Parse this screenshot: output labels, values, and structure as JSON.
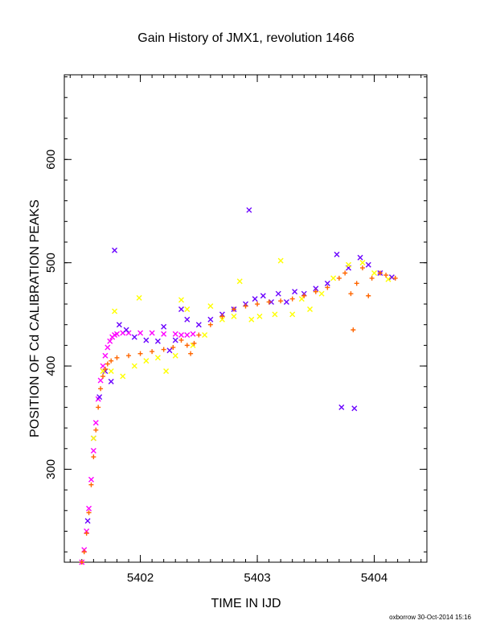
{
  "chart_data": {
    "type": "scatter",
    "title": "Gain History of JMX1, revolution 1466",
    "xlabel": "TIME IN IJD",
    "ylabel": "POSITION OF Cd CALIBRATION PEAKS",
    "xlim": [
      5401.35,
      5404.45
    ],
    "ylim": [
      210,
      682
    ],
    "x_ticks": [
      "5402",
      "5403",
      "5404"
    ],
    "x_tick_values": [
      5402,
      5403,
      5404
    ],
    "y_ticks": [
      "300",
      "400",
      "500",
      "600"
    ],
    "y_tick_values": [
      300,
      400,
      500,
      600
    ],
    "x_minor_step": 0.1,
    "y_minor_step": 20,
    "grid": false,
    "legend": "none",
    "credit": "oxborrow 30-Oct-2014 15:16",
    "series": [
      {
        "color": "#ff00ff",
        "marker": "x",
        "points": [
          [
            5401.5,
            210
          ],
          [
            5401.52,
            222
          ],
          [
            5401.54,
            240
          ],
          [
            5401.56,
            262
          ],
          [
            5401.58,
            290
          ],
          [
            5401.6,
            318
          ],
          [
            5401.62,
            345
          ],
          [
            5401.64,
            368
          ],
          [
            5401.66,
            386
          ],
          [
            5401.68,
            400
          ],
          [
            5401.7,
            410
          ],
          [
            5401.72,
            418
          ],
          [
            5401.74,
            424
          ],
          [
            5401.76,
            428
          ],
          [
            5401.78,
            430
          ],
          [
            5401.8,
            431
          ],
          [
            5401.85,
            432
          ],
          [
            5401.9,
            432
          ],
          [
            5402.0,
            432
          ],
          [
            5402.1,
            432
          ],
          [
            5402.2,
            431
          ],
          [
            5402.3,
            431
          ],
          [
            5402.35,
            430
          ],
          [
            5402.4,
            430
          ],
          [
            5402.45,
            431
          ]
        ]
      },
      {
        "color": "#6a00ff",
        "marker": "x",
        "points": [
          [
            5401.55,
            250
          ],
          [
            5401.6,
            330
          ],
          [
            5401.65,
            370
          ],
          [
            5401.7,
            395
          ],
          [
            5401.75,
            385
          ],
          [
            5401.78,
            512
          ],
          [
            5401.82,
            440
          ],
          [
            5401.88,
            435
          ],
          [
            5401.95,
            428
          ],
          [
            5402.05,
            425
          ],
          [
            5402.15,
            424
          ],
          [
            5402.2,
            438
          ],
          [
            5402.25,
            415
          ],
          [
            5402.3,
            425
          ],
          [
            5402.35,
            455
          ],
          [
            5402.4,
            445
          ],
          [
            5402.5,
            440
          ],
          [
            5402.6,
            445
          ],
          [
            5402.7,
            450
          ],
          [
            5402.8,
            455
          ],
          [
            5402.9,
            460
          ],
          [
            5402.93,
            551
          ],
          [
            5402.98,
            465
          ],
          [
            5403.05,
            468
          ],
          [
            5403.12,
            462
          ],
          [
            5403.18,
            470
          ],
          [
            5403.25,
            462
          ],
          [
            5403.32,
            472
          ],
          [
            5403.4,
            470
          ],
          [
            5403.5,
            475
          ],
          [
            5403.6,
            480
          ],
          [
            5403.68,
            508
          ],
          [
            5403.72,
            360
          ],
          [
            5403.78,
            495
          ],
          [
            5403.83,
            359
          ],
          [
            5403.88,
            505
          ],
          [
            5403.95,
            498
          ],
          [
            5404.05,
            490
          ],
          [
            5404.15,
            486
          ]
        ]
      },
      {
        "color": "#ffff00",
        "marker": "x",
        "points": [
          [
            5401.6,
            330
          ],
          [
            5401.68,
            395
          ],
          [
            5401.75,
            395
          ],
          [
            5401.78,
            453
          ],
          [
            5401.85,
            390
          ],
          [
            5401.95,
            400
          ],
          [
            5401.99,
            466
          ],
          [
            5402.05,
            405
          ],
          [
            5402.15,
            408
          ],
          [
            5402.22,
            395
          ],
          [
            5402.3,
            410
          ],
          [
            5402.35,
            464
          ],
          [
            5402.4,
            455
          ],
          [
            5402.45,
            420
          ],
          [
            5402.55,
            430
          ],
          [
            5402.6,
            458
          ],
          [
            5402.7,
            445
          ],
          [
            5402.8,
            448
          ],
          [
            5402.85,
            482
          ],
          [
            5402.95,
            445
          ],
          [
            5403.02,
            448
          ],
          [
            5403.15,
            450
          ],
          [
            5403.2,
            502
          ],
          [
            5403.3,
            450
          ],
          [
            5403.38,
            465
          ],
          [
            5403.45,
            455
          ],
          [
            5403.55,
            470
          ],
          [
            5403.65,
            485
          ],
          [
            5403.78,
            498
          ],
          [
            5403.9,
            500
          ],
          [
            5404.0,
            490
          ],
          [
            5404.12,
            484
          ]
        ]
      },
      {
        "color": "#ff6600",
        "marker": "+",
        "points": [
          [
            5401.5,
            210
          ],
          [
            5401.52,
            220
          ],
          [
            5401.54,
            238
          ],
          [
            5401.56,
            258
          ],
          [
            5401.58,
            285
          ],
          [
            5401.6,
            312
          ],
          [
            5401.62,
            338
          ],
          [
            5401.64,
            360
          ],
          [
            5401.66,
            378
          ],
          [
            5401.68,
            390
          ],
          [
            5401.7,
            397
          ],
          [
            5401.72,
            402
          ],
          [
            5401.75,
            405
          ],
          [
            5401.8,
            408
          ],
          [
            5401.9,
            410
          ],
          [
            5402.0,
            412
          ],
          [
            5402.1,
            414
          ],
          [
            5402.2,
            416
          ],
          [
            5402.28,
            418
          ],
          [
            5402.35,
            425
          ],
          [
            5402.4,
            420
          ],
          [
            5402.43,
            412
          ],
          [
            5402.46,
            422
          ],
          [
            5402.5,
            430
          ],
          [
            5402.6,
            440
          ],
          [
            5402.7,
            448
          ],
          [
            5402.8,
            455
          ],
          [
            5402.9,
            458
          ],
          [
            5403.0,
            460
          ],
          [
            5403.1,
            462
          ],
          [
            5403.2,
            463
          ],
          [
            5403.3,
            465
          ],
          [
            5403.4,
            468
          ],
          [
            5403.5,
            472
          ],
          [
            5403.6,
            476
          ],
          [
            5403.7,
            485
          ],
          [
            5403.75,
            490
          ],
          [
            5403.8,
            470
          ],
          [
            5403.82,
            435
          ],
          [
            5403.85,
            480
          ],
          [
            5403.9,
            495
          ],
          [
            5403.95,
            468
          ],
          [
            5403.98,
            485
          ],
          [
            5404.05,
            490
          ],
          [
            5404.1,
            488
          ],
          [
            5404.18,
            485
          ]
        ]
      }
    ]
  }
}
